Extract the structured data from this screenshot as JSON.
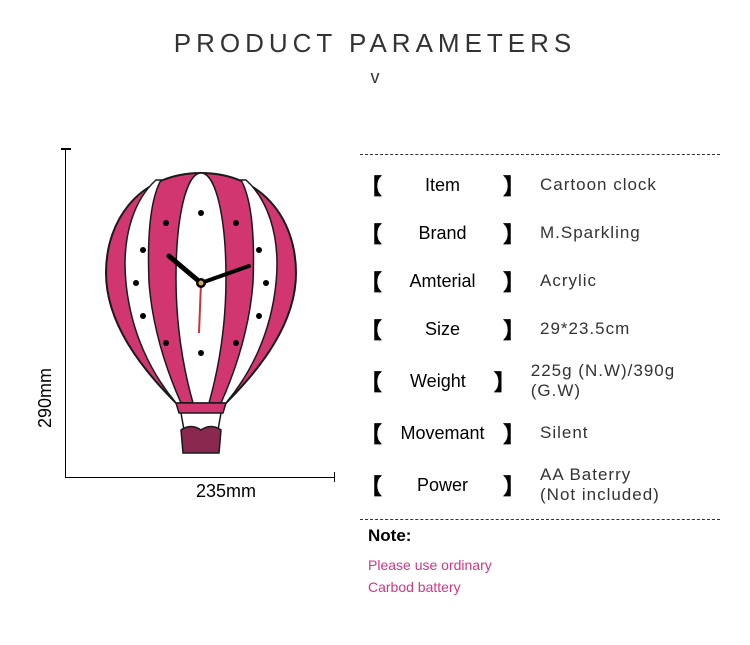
{
  "title": "PRODUCT  PARAMETERS",
  "chevron_glyph": "v",
  "dimensions": {
    "vertical": "290mm",
    "horizontal": "235mm"
  },
  "balloon": {
    "primary_color": "#d13670",
    "secondary_color": "#ffffff",
    "outline_color": "#1a1a1a",
    "basket_color": "#8b2850",
    "marker_color": "#000000",
    "hand_color_hour": "#000000",
    "hand_color_second": "#cc3333"
  },
  "parameters": [
    {
      "label": "Item",
      "value": "Cartoon clock"
    },
    {
      "label": "Brand",
      "value": "M.Sparkling"
    },
    {
      "label": "Amterial",
      "value": "Acrylic"
    },
    {
      "label": "Size",
      "value": "29*23.5cm"
    },
    {
      "label": "Weight",
      "value": "225g (N.W)/390g (G.W)"
    },
    {
      "label": "Movemant",
      "value": "Silent"
    },
    {
      "label": "Power",
      "value": "AA Baterry\n(Not included)"
    }
  ],
  "note": {
    "title": "Note:",
    "text": "Please use ordinary\nCarbod battery"
  },
  "colors": {
    "title_text": "#333333",
    "param_text": "#000000",
    "value_text": "#333333",
    "note_color": "#d13670",
    "dashed_line": "#333333"
  }
}
